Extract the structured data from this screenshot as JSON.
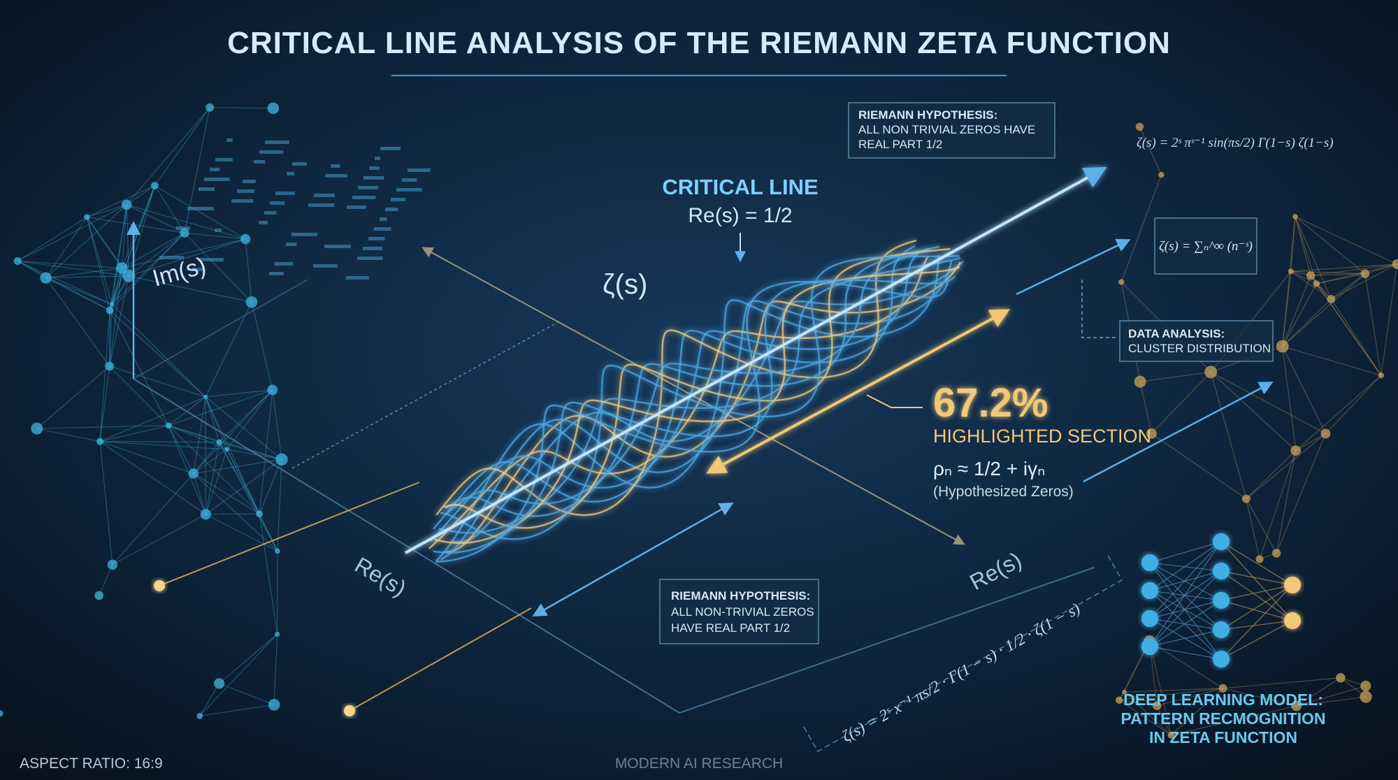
{
  "header": {
    "title": "CRITICAL LINE ANALYSIS OF THE RIEMANN ZETA FUNCTION"
  },
  "axes": {
    "im_label": "Im(s)",
    "re_label_left": "Re(s)",
    "re_label_right": "Re(s)"
  },
  "critical_line": {
    "title": "CRITICAL LINE",
    "equation": "Re(s) = 1/2"
  },
  "zeta_symbol": "ζ(s)",
  "callouts": [
    {
      "title": "RIEMANN HYPOTHESIS:",
      "lines": [
        "ALL NON TRIVIAL ZEROS HAVE",
        "REAL PART 1/2"
      ]
    },
    {
      "title": "RIEMANN HYPOTHESIS:",
      "lines": [
        "ALL NON-TRIVIAL ZEROS",
        "HAVE REAL PART 1/2"
      ]
    }
  ],
  "data_analysis": {
    "title": "DATA ANALYSIS:",
    "subtitle": "CLUSTER DISTRIBUTION"
  },
  "highlight": {
    "percent": "67.2%",
    "label": "HIGHLIGHTED SECTION",
    "formula": "ρₙ ≈ 1/2 + iγₙ",
    "note": "(Hypothesized Zeros)"
  },
  "formulas": {
    "functional_equation": "ζ(s) = 2ˢ πˢ⁻¹ sin(πs/2) Γ(1−s) ζ(1−s)",
    "series": "ζ(s) = ∑ₙ^∞ (n⁻ˢ)",
    "rotated": "ζ(s) = 2ˢ x⁻¹ πs/2 · Γ(1 − s) · 1/2 · ζ(1 − s)"
  },
  "deep_learning": {
    "lines": [
      "DEEP LEARNING MODEL:",
      "PATTERN RECMOGNITION",
      "IN ZETA FUNCTION"
    ]
  },
  "footer": {
    "aspect_ratio": "ASPECT RATIO: 16:9",
    "credit": "MODERN AI RESEARCH"
  }
}
